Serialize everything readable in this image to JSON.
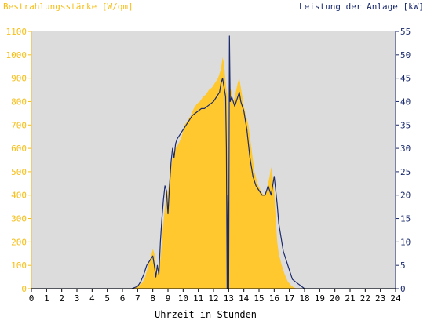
{
  "chart_data": {
    "type": "area",
    "title_left": "Bestrahlungsstärke [W/qm]",
    "title_right": "Leistung der Anlage [kW]",
    "xlabel": "Uhrzeit in Stunden",
    "xlim": [
      0,
      24
    ],
    "y_left_lim": [
      0,
      1100
    ],
    "y_right_lim": [
      0,
      55
    ],
    "x_ticks": [
      "0",
      "1",
      "2",
      "3",
      "4",
      "5",
      "6",
      "7",
      "8",
      "9",
      "10",
      "11",
      "12",
      "13",
      "14",
      "15",
      "16",
      "17",
      "18",
      "19",
      "20",
      "21",
      "22",
      "23",
      "24"
    ],
    "y_left_ticks": [
      "0",
      "100",
      "200",
      "300",
      "400",
      "500",
      "600",
      "700",
      "800",
      "900",
      "1000",
      "1100"
    ],
    "y_right_ticks": [
      "0",
      "5",
      "10",
      "15",
      "20",
      "25",
      "30",
      "35",
      "40",
      "45",
      "50",
      "55"
    ],
    "grid": false,
    "colors": {
      "background": "#dcdcdc",
      "irradiance": "#ffc82e",
      "power": "#1a2a6c",
      "left_axis": "#f7be16",
      "right_axis": "#1a2a6c"
    },
    "series": [
      {
        "name": "Bestrahlungsstärke [W/qm]",
        "axis": "left",
        "style": "area",
        "x": [
          0,
          6.6,
          6.9,
          7.1,
          7.3,
          7.5,
          7.7,
          7.9,
          8.0,
          8.1,
          8.2,
          8.3,
          8.5,
          8.6,
          8.7,
          8.8,
          8.9,
          9.0,
          9.1,
          9.2,
          9.3,
          9.5,
          9.7,
          9.9,
          10.1,
          10.3,
          10.5,
          10.7,
          10.9,
          11.1,
          11.3,
          11.5,
          11.7,
          11.9,
          12.1,
          12.3,
          12.4,
          12.5,
          12.6,
          12.7,
          12.8,
          12.9,
          12.95,
          13.0,
          13.05,
          13.1,
          13.2,
          13.3,
          13.4,
          13.5,
          13.6,
          13.7,
          13.8,
          13.9,
          14.0,
          14.1,
          14.3,
          14.5,
          14.7,
          14.9,
          15.1,
          15.3,
          15.5,
          15.6,
          15.7,
          15.8,
          15.9,
          16.0,
          16.1,
          16.2,
          16.3,
          16.5,
          16.7,
          16.9,
          17.1,
          17.3,
          17.5,
          17.7,
          17.9,
          18.1,
          24
        ],
        "y": [
          0,
          0,
          5,
          15,
          25,
          50,
          100,
          140,
          170,
          150,
          100,
          60,
          120,
          200,
          280,
          350,
          400,
          420,
          460,
          520,
          560,
          600,
          620,
          650,
          700,
          720,
          740,
          770,
          790,
          800,
          820,
          830,
          850,
          860,
          880,
          900,
          920,
          940,
          990,
          960,
          880,
          830,
          400,
          0,
          830,
          860,
          840,
          800,
          820,
          850,
          880,
          900,
          860,
          820,
          780,
          750,
          700,
          600,
          500,
          450,
          420,
          400,
          420,
          450,
          480,
          520,
          480,
          420,
          300,
          200,
          150,
          100,
          60,
          30,
          15,
          5,
          0,
          0,
          0,
          0,
          0
        ]
      },
      {
        "name": "Leistung der Anlage [kW]",
        "axis": "right",
        "style": "line",
        "x": [
          0,
          6.6,
          7.0,
          7.2,
          7.4,
          7.6,
          7.8,
          8.0,
          8.1,
          8.2,
          8.3,
          8.4,
          8.5,
          8.6,
          8.7,
          8.8,
          8.9,
          9.0,
          9.1,
          9.2,
          9.3,
          9.4,
          9.5,
          9.6,
          9.8,
          10.0,
          10.2,
          10.4,
          10.6,
          10.8,
          11.0,
          11.2,
          11.4,
          11.6,
          11.8,
          12.0,
          12.2,
          12.4,
          12.5,
          12.6,
          12.7,
          12.8,
          12.85,
          12.9,
          12.95,
          13.0,
          13.05,
          13.1,
          13.2,
          13.3,
          13.4,
          13.5,
          13.6,
          13.7,
          13.8,
          13.9,
          14.0,
          14.1,
          14.2,
          14.4,
          14.6,
          14.8,
          15.0,
          15.2,
          15.4,
          15.5,
          15.6,
          15.7,
          15.8,
          15.9,
          16.0,
          16.1,
          16.2,
          16.3,
          16.4,
          16.6,
          16.8,
          17.0,
          17.2,
          17.4,
          17.6,
          17.8,
          18.0,
          24
        ],
        "y": [
          0,
          0,
          0.5,
          1.5,
          3,
          5,
          6,
          7,
          5,
          2.5,
          5,
          3,
          10,
          15,
          19,
          22,
          21,
          16,
          22,
          27,
          30,
          28,
          31,
          32,
          33,
          34,
          35,
          36,
          37,
          37.5,
          38,
          38.5,
          38.5,
          39,
          39.5,
          40,
          41,
          42,
          44,
          45,
          43,
          41,
          30,
          0,
          20,
          0,
          54,
          40,
          41,
          40,
          39,
          40,
          41,
          42,
          40,
          39,
          38,
          36,
          34,
          28,
          24,
          22,
          21,
          20,
          20,
          21,
          22,
          21,
          20,
          22,
          24,
          21,
          18,
          14,
          12,
          8,
          6,
          4,
          2,
          1.5,
          1,
          0.5,
          0,
          0
        ]
      }
    ]
  }
}
